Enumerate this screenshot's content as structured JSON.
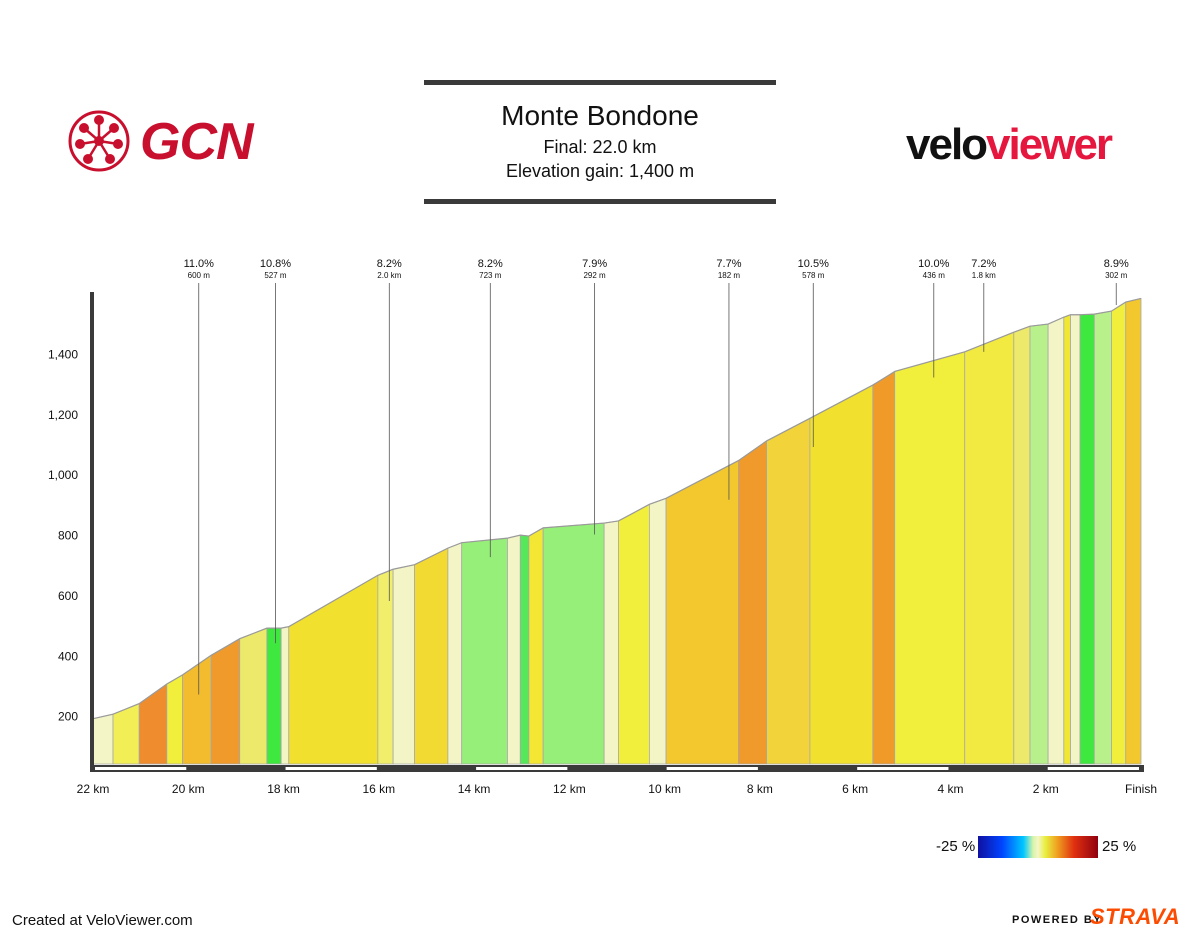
{
  "header": {
    "title": "Monte Bondone",
    "final": "Final: 22.0 km",
    "elevation_gain": "Elevation gain: 1,400 m"
  },
  "logos": {
    "gcn": "GCN",
    "veloviewer_part1": "velo",
    "veloviewer_part2": "viewer",
    "gcn_color": "#c8102e",
    "veloviewer_accent": "#e5173f"
  },
  "footer": {
    "created": "Created at VeloViewer.com",
    "powered_by": "POWERED BY",
    "strava": "STRAVA",
    "strava_color": "#fc4c02"
  },
  "legend": {
    "min_label": "-25 %",
    "max_label": "25 %"
  },
  "chart_data": {
    "type": "area",
    "title": "Monte Bondone",
    "x_direction": "reversed",
    "xlim": [
      22,
      0
    ],
    "ylim": [
      40,
      1590
    ],
    "x_ticks": [
      {
        "value": 22,
        "label": "22 km"
      },
      {
        "value": 20,
        "label": "20 km"
      },
      {
        "value": 18,
        "label": "18 km"
      },
      {
        "value": 16,
        "label": "16 km"
      },
      {
        "value": 14,
        "label": "14 km"
      },
      {
        "value": 12,
        "label": "12 km"
      },
      {
        "value": 10,
        "label": "10 km"
      },
      {
        "value": 8,
        "label": "8 km"
      },
      {
        "value": 6,
        "label": "6 km"
      },
      {
        "value": 4,
        "label": "4 km"
      },
      {
        "value": 2,
        "label": "2 km"
      },
      {
        "value": 0,
        "label": "Finish"
      }
    ],
    "y_ticks": [
      {
        "value": 200,
        "label": "200"
      },
      {
        "value": 400,
        "label": "400"
      },
      {
        "value": 600,
        "label": "600"
      },
      {
        "value": 800,
        "label": "800"
      },
      {
        "value": 1000,
        "label": "1,000"
      },
      {
        "value": 1200,
        "label": "1,200"
      },
      {
        "value": 1400,
        "label": "1,400"
      }
    ],
    "profile": [
      [
        22.0,
        190
      ],
      [
        21.58,
        205
      ],
      [
        21.03,
        240
      ],
      [
        20.45,
        305
      ],
      [
        20.12,
        335
      ],
      [
        19.52,
        400
      ],
      [
        18.92,
        455
      ],
      [
        18.35,
        490
      ],
      [
        18.05,
        490
      ],
      [
        17.89,
        495
      ],
      [
        16.02,
        665
      ],
      [
        15.7,
        685
      ],
      [
        15.25,
        700
      ],
      [
        14.55,
        755
      ],
      [
        14.26,
        773
      ],
      [
        13.3,
        788
      ],
      [
        13.03,
        798
      ],
      [
        12.85,
        795
      ],
      [
        12.55,
        822
      ],
      [
        11.27,
        838
      ],
      [
        10.97,
        845
      ],
      [
        10.32,
        900
      ],
      [
        9.97,
        920
      ],
      [
        8.45,
        1045
      ],
      [
        7.86,
        1110
      ],
      [
        6.95,
        1185
      ],
      [
        5.63,
        1295
      ],
      [
        5.17,
        1340
      ],
      [
        3.7,
        1405
      ],
      [
        2.67,
        1470
      ],
      [
        2.33,
        1490
      ],
      [
        1.95,
        1497
      ],
      [
        1.62,
        1520
      ],
      [
        1.48,
        1528
      ],
      [
        1.28,
        1528
      ],
      [
        0.98,
        1530
      ],
      [
        0.62,
        1540
      ],
      [
        0.32,
        1570
      ],
      [
        0.0,
        1582
      ]
    ],
    "segment_colors": [
      "#f3f5c6",
      "#f1ef55",
      "#ef8c2e",
      "#f1ee3c",
      "#f3bb2e",
      "#ef9a2a",
      "#ede96b",
      "#3fe83e",
      "#f3f5c6",
      "#f1e12e",
      "#f0ee6a",
      "#f3f5c6",
      "#f2da33",
      "#f3f5c6",
      "#95ef78",
      "#f3f5c6",
      "#56e85a",
      "#f3e733",
      "#95ef78",
      "#f3f5c6",
      "#f1ee3c",
      "#f3f5c6",
      "#f3c82e",
      "#ef9a2a",
      "#f2d43a",
      "#f1e12e",
      "#f09a2a",
      "#f1ee3c",
      "#f2ea40",
      "#ede96b",
      "#b8f08c",
      "#f3f5c6",
      "#f0e733",
      "#f3f5c6",
      "#3fe83e",
      "#b8f08c",
      "#f1ee3c",
      "#f3c82e",
      "#f3f5c6",
      "#ede96b"
    ],
    "annotations": [
      {
        "x": 19.78,
        "y": 270,
        "gradient": "11.0%",
        "length": "600 m"
      },
      {
        "x": 18.17,
        "y": 440,
        "gradient": "10.8%",
        "length": "527 m"
      },
      {
        "x": 15.78,
        "y": 580,
        "gradient": "8.2%",
        "length": "2.0 km"
      },
      {
        "x": 13.66,
        "y": 725,
        "gradient": "8.2%",
        "length": "723 m"
      },
      {
        "x": 11.47,
        "y": 800,
        "gradient": "7.9%",
        "length": "292 m"
      },
      {
        "x": 8.65,
        "y": 915,
        "gradient": "7.7%",
        "length": "182 m"
      },
      {
        "x": 6.88,
        "y": 1090,
        "gradient": "10.5%",
        "length": "578 m"
      },
      {
        "x": 4.35,
        "y": 1320,
        "gradient": "10.0%",
        "length": "436 m"
      },
      {
        "x": 3.3,
        "y": 1405,
        "gradient": "7.2%",
        "length": "1.8 km"
      },
      {
        "x": 0.52,
        "y": 1560,
        "gradient": "8.9%",
        "length": "302 m"
      }
    ]
  }
}
